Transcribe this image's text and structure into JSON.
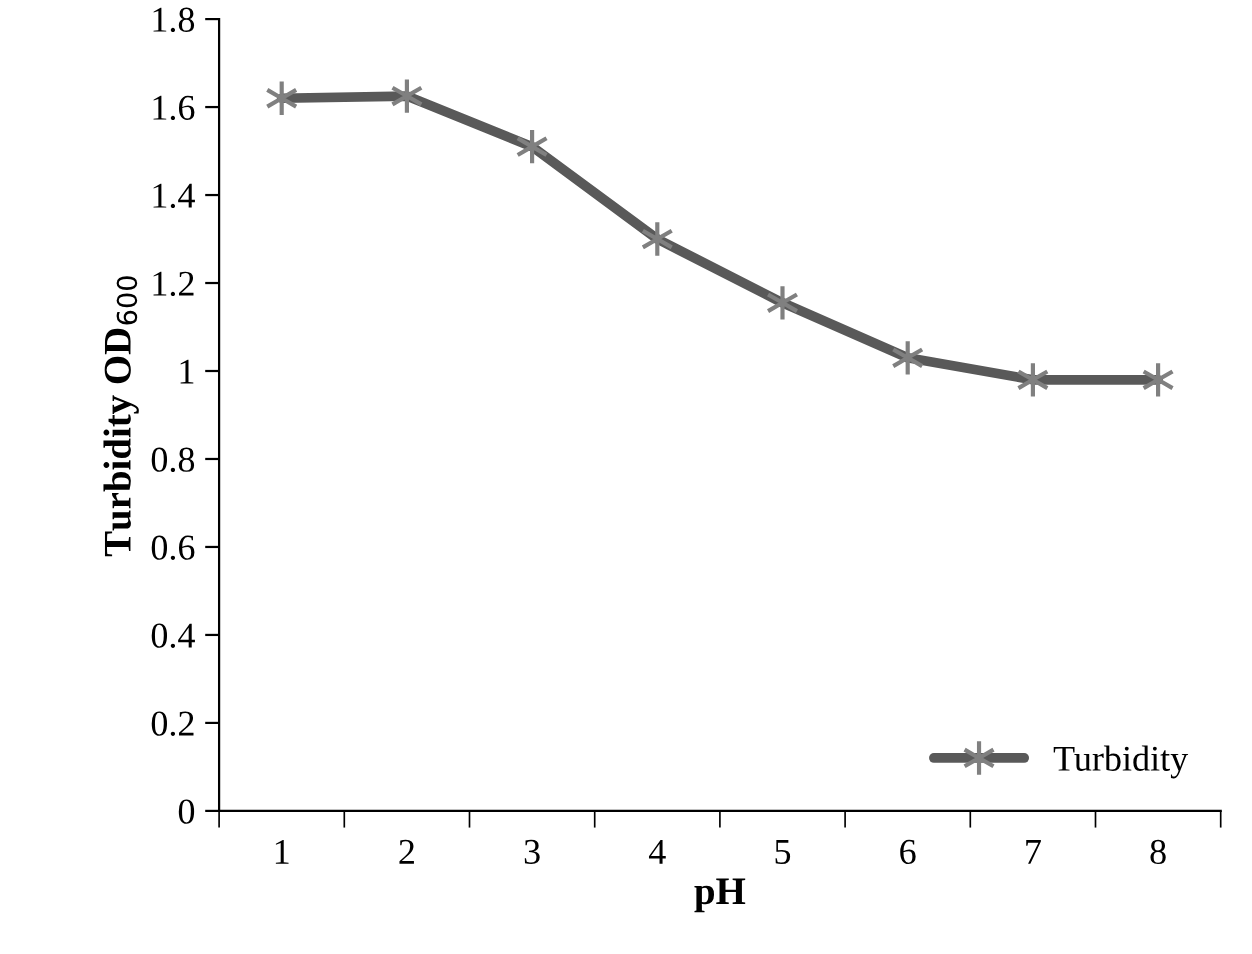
{
  "chart_data": {
    "type": "line",
    "xlabel": "pH",
    "ylabel": "Turbidity OD$_{600}$",
    "categories": [
      "1",
      "2",
      "3",
      "4",
      "5",
      "6",
      "7",
      "8"
    ],
    "series": [
      {
        "name": "Turbidity",
        "color": "#595959",
        "values": [
          1.62,
          1.625,
          1.51,
          1.3,
          1.155,
          1.03,
          0.98,
          0.98
        ]
      }
    ],
    "ylim": [
      0,
      1.8
    ],
    "yticks": [
      0,
      0.2,
      0.4,
      0.6,
      0.8,
      1,
      1.2,
      1.4,
      1.6,
      1.8
    ],
    "marker": "cross",
    "line_style": "solid",
    "grid": false,
    "legend": "bottom right"
  }
}
